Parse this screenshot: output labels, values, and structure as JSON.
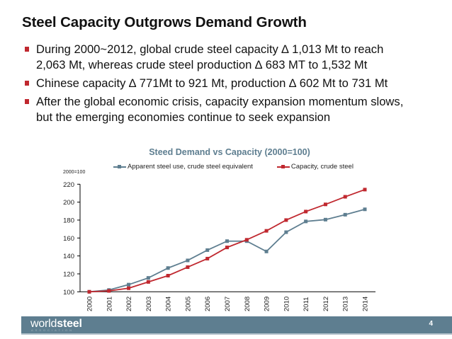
{
  "slide": {
    "title": "Steel Capacity Outgrows Demand Growth",
    "bullets": [
      {
        "line1": "During 2000~2012, global crude steel capacity ∆ 1,013 Mt to reach",
        "line2": "2,063 Mt, whereas crude steel production ∆ 683 MT to 1,532 Mt"
      },
      {
        "line1": "Chinese capacity ∆ 771Mt to 921 Mt, production ∆ 602 Mt to 731 Mt",
        "line2": ""
      },
      {
        "line1": "After the global economic crisis, capacity expansion momentum slows,",
        "line2": "but the emerging economies continue to seek expansion"
      }
    ],
    "bullet_color": "#c0282f"
  },
  "footer": {
    "logo_regular": "world",
    "logo_bold": "steel",
    "logo_sub": "ASSOCIATION",
    "page_number": "4",
    "bar_color": "#5e7e90"
  },
  "chart_data": {
    "type": "line",
    "title": "Steed Demand vs Capacity (2000=100)",
    "unit_label": "2000=100",
    "xlabel": "",
    "ylabel": "",
    "ylim": [
      100,
      220
    ],
    "yticks": [
      100,
      120,
      140,
      160,
      180,
      200,
      220
    ],
    "grid": false,
    "legend_position": "top",
    "categories": [
      "2000",
      "2001",
      "2002",
      "2003",
      "2004",
      "2005",
      "2006",
      "2007",
      "2008",
      "2009",
      "2010",
      "2011",
      "2012",
      "2013",
      "2014"
    ],
    "series": [
      {
        "name": "Apparent steel use, crude steel equivalent",
        "color": "#5e7e90",
        "values": [
          100,
          102,
          108,
          115.5,
          126.5,
          135,
          146.5,
          156.5,
          156.5,
          145,
          166.5,
          178.5,
          180.5,
          186,
          192
        ]
      },
      {
        "name": "Capacity, crude steel",
        "color": "#c0282f",
        "values": [
          100,
          101,
          104,
          111,
          118,
          127.5,
          137,
          149.5,
          158,
          168,
          180,
          189.5,
          197.5,
          206,
          214
        ]
      }
    ]
  }
}
